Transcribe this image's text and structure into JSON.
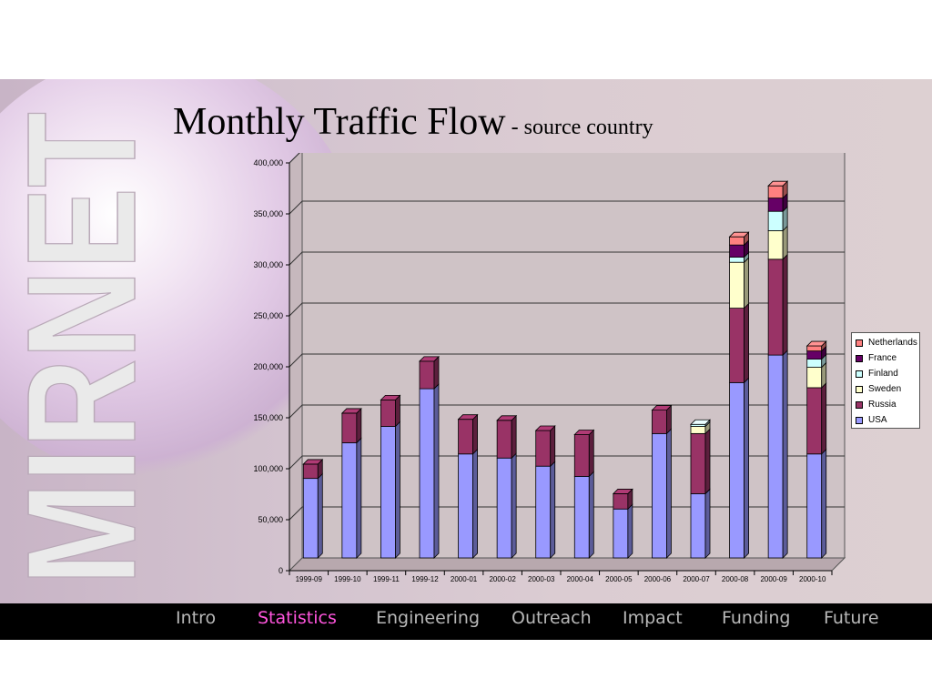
{
  "slide": {
    "title": "Monthly Traffic Flow",
    "subtitle": "- source country",
    "logo_text": "MIRNET"
  },
  "nav": {
    "items": [
      "Intro",
      "Statistics",
      "Engineering",
      "Outreach",
      "Impact",
      "Funding",
      "Future"
    ],
    "active": "Statistics"
  },
  "colors": {
    "USA": "#9999ff",
    "Russia": "#993366",
    "Sweden": "#ffffcc",
    "Finland": "#ccffff",
    "France": "#660066",
    "Netherlands": "#ff8080",
    "nav_active": "#ff55dd",
    "nav_inactive": "#b8b8b8"
  },
  "chart_data": {
    "type": "bar",
    "stacked": true,
    "three_d": true,
    "categories": [
      "1999-09",
      "1999-10",
      "1999-11",
      "1999-12",
      "2000-01",
      "2000-02",
      "2000-03",
      "2000-04",
      "2000-05",
      "2000-06",
      "2000-07",
      "2000-08",
      "2000-09",
      "2000-10"
    ],
    "series": [
      {
        "name": "USA",
        "values": [
          78000,
          113000,
          129000,
          166000,
          102000,
          98000,
          90000,
          80000,
          48000,
          122000,
          63000,
          172000,
          199000,
          102000
        ]
      },
      {
        "name": "Russia",
        "values": [
          14000,
          29000,
          26000,
          27000,
          34000,
          37000,
          35000,
          41000,
          15000,
          23000,
          59000,
          73000,
          94000,
          65000
        ]
      },
      {
        "name": "Sweden",
        "values": [
          0,
          0,
          0,
          0,
          0,
          0,
          0,
          0,
          0,
          0,
          7000,
          45000,
          28000,
          20000
        ]
      },
      {
        "name": "Finland",
        "values": [
          0,
          0,
          0,
          0,
          0,
          0,
          0,
          0,
          0,
          0,
          2000,
          5000,
          19000,
          8000
        ]
      },
      {
        "name": "France",
        "values": [
          0,
          0,
          0,
          0,
          0,
          0,
          0,
          0,
          0,
          0,
          0,
          12000,
          13000,
          8000
        ]
      },
      {
        "name": "Netherlands",
        "values": [
          0,
          0,
          0,
          0,
          0,
          0,
          0,
          0,
          0,
          0,
          0,
          8000,
          12000,
          5000
        ]
      }
    ],
    "yticks": [
      "0",
      "50,000",
      "100,000",
      "150,000",
      "200,000",
      "250,000",
      "300,000",
      "350,000",
      "400,000"
    ],
    "ylim": [
      0,
      400000
    ],
    "grid": true,
    "legend_position": "right",
    "legend_order": [
      "Netherlands",
      "France",
      "Finland",
      "Sweden",
      "Russia",
      "USA"
    ],
    "title": "Monthly Traffic Flow",
    "subtitle": "- source country"
  }
}
